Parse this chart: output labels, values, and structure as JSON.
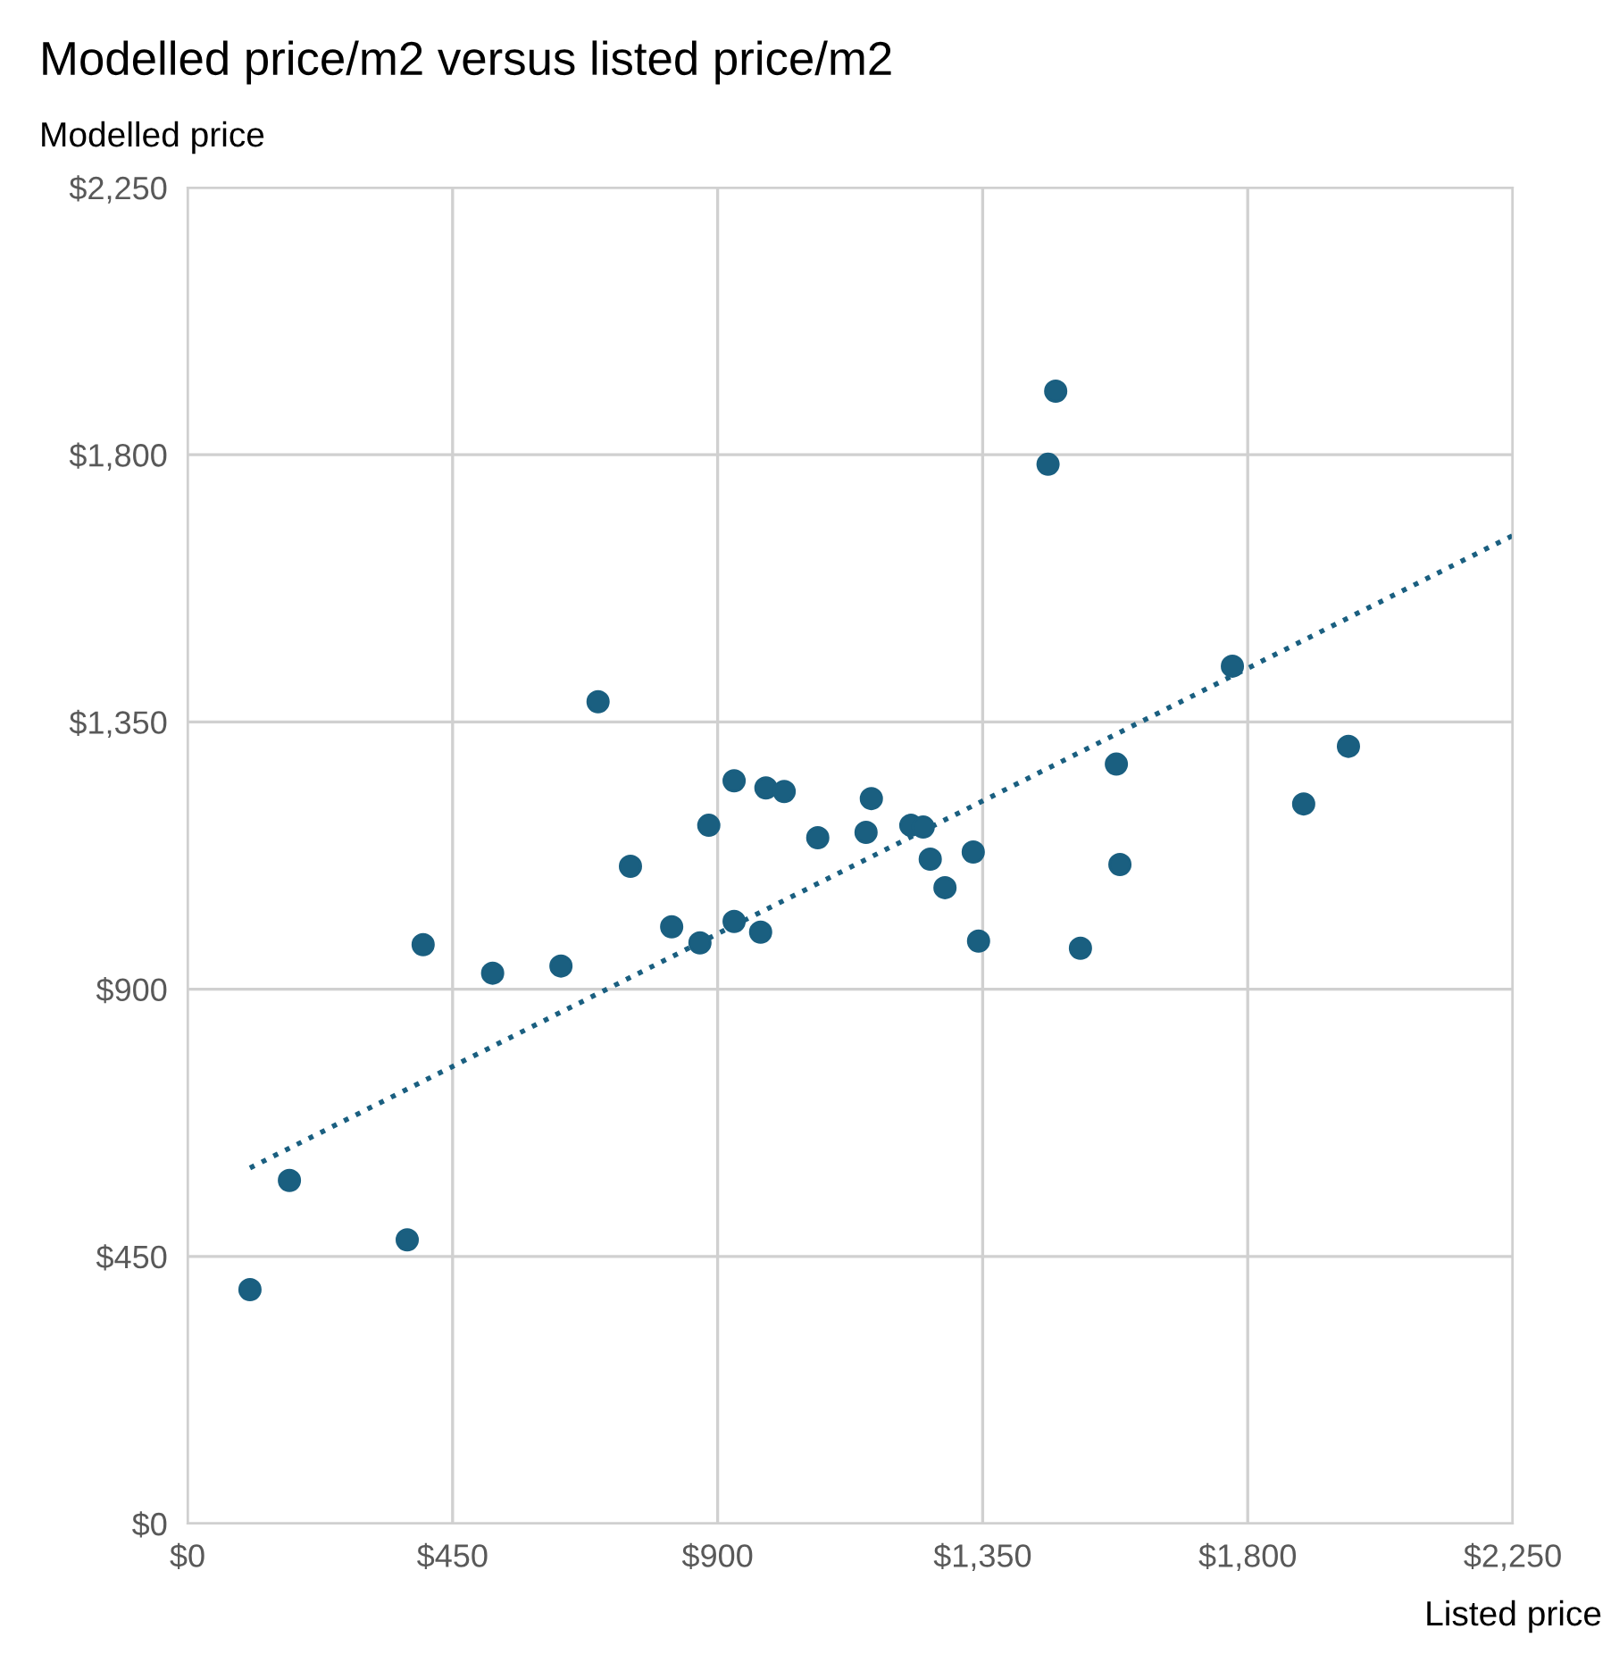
{
  "chart_data": {
    "type": "scatter",
    "title": "Modelled price/m2 versus listed price/m2",
    "xlabel": "Listed price",
    "ylabel": "Modelled price",
    "xlim": [
      0,
      2250
    ],
    "ylim": [
      0,
      2250
    ],
    "xticks": [
      {
        "value": 0,
        "label": "$0"
      },
      {
        "value": 450,
        "label": "$450"
      },
      {
        "value": 900,
        "label": "$900"
      },
      {
        "value": 1350,
        "label": "$1,350"
      },
      {
        "value": 1800,
        "label": "$1,800"
      },
      {
        "value": 2250,
        "label": "$2,250"
      }
    ],
    "yticks": [
      {
        "value": 0,
        "label": "$0"
      },
      {
        "value": 450,
        "label": "$450"
      },
      {
        "value": 900,
        "label": "$900"
      },
      {
        "value": 1350,
        "label": "$1,350"
      },
      {
        "value": 1800,
        "label": "$1,800"
      },
      {
        "value": 2250,
        "label": "$2,250"
      }
    ],
    "grid": true,
    "legend": false,
    "series": [
      {
        "marker": "circle",
        "color": "#1a5f80",
        "x": [
          106,
          173,
          373,
          400,
          518,
          634,
          697,
          752,
          822,
          870,
          885,
          928,
          928,
          973,
          982,
          1013,
          1070,
          1152,
          1161,
          1228,
          1249,
          1261,
          1286,
          1334,
          1343,
          1461,
          1474,
          1516,
          1577,
          1583,
          1774,
          1895,
          1971
        ],
        "values": [
          394,
          578,
          478,
          975,
          927,
          939,
          1384,
          1107,
          1005,
          978,
          1176,
          1251,
          1014,
          996,
          1239,
          1233,
          1155,
          1164,
          1221,
          1176,
          1173,
          1119,
          1071,
          1131,
          981,
          1784,
          1907,
          969,
          1279,
          1110,
          1444,
          1212,
          1309
        ]
      },
      {
        "type": "line",
        "marker": "none",
        "color": "#1a5f80",
        "line_style": "dotted",
        "x": [
          106,
          2250
        ],
        "values": [
          599,
          1664
        ]
      }
    ]
  }
}
